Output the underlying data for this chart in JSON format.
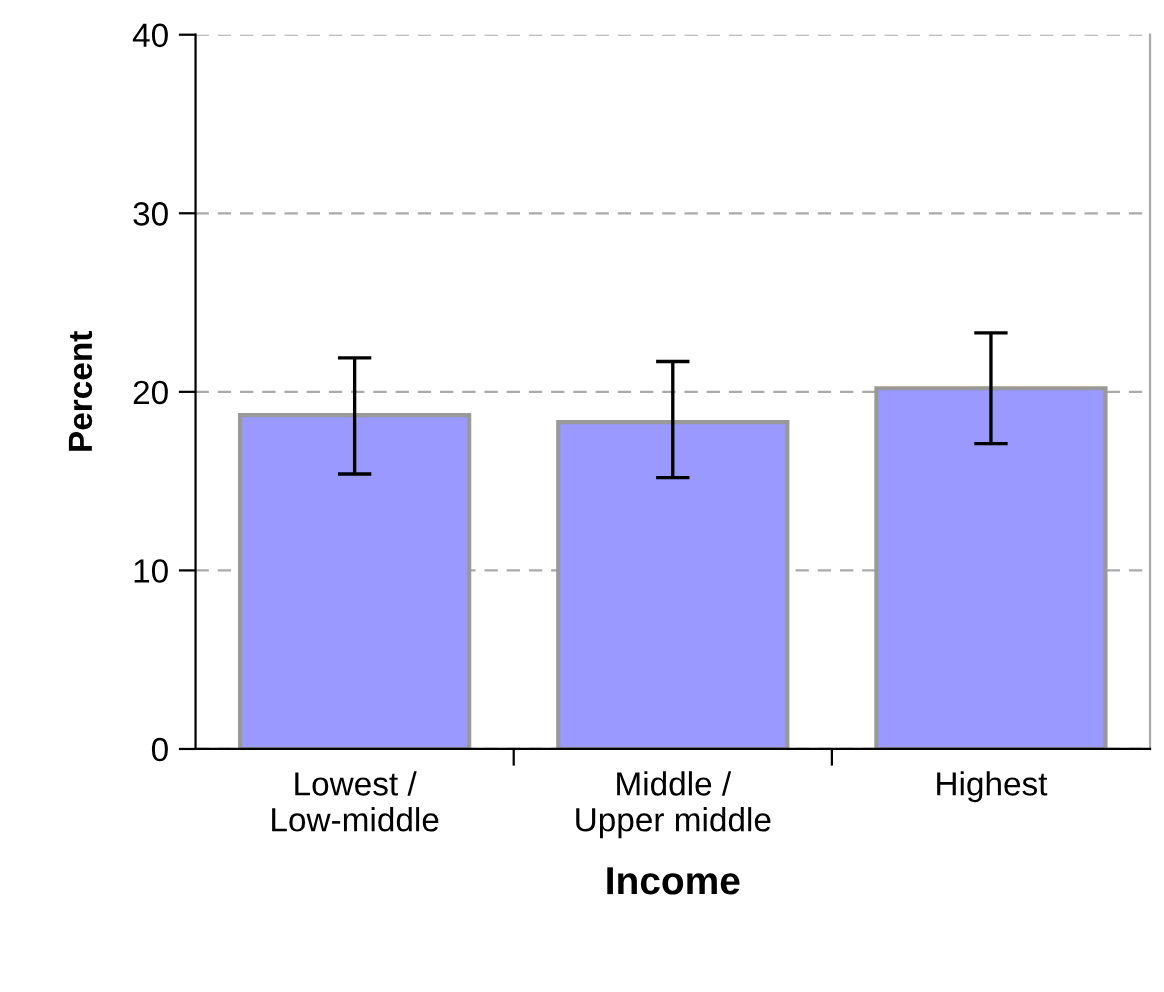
{
  "chart_data": {
    "type": "bar",
    "xlabel": "Income",
    "ylabel": "Percent",
    "categories": [
      "Lowest /\nLow-middle",
      "Middle /\nUpper middle",
      "Highest"
    ],
    "values": [
      18.7,
      18.3,
      20.2
    ],
    "errors": [
      [
        15.4,
        21.9
      ],
      [
        15.2,
        21.7
      ],
      [
        17.1,
        23.3
      ]
    ],
    "color": "#9999ff",
    "ylim": [
      0,
      40
    ],
    "yticks": [
      0,
      10,
      20,
      30,
      40
    ],
    "grid": "y"
  }
}
